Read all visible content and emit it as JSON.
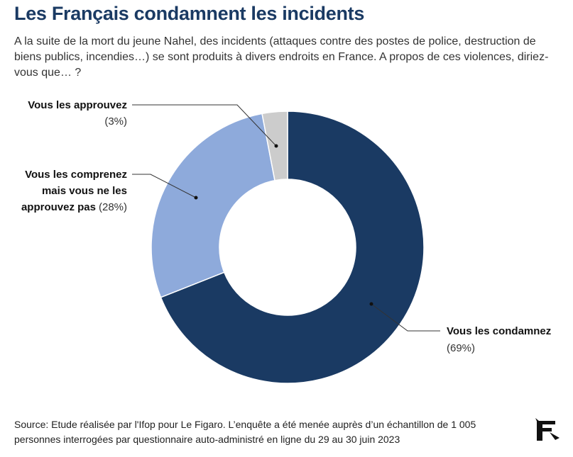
{
  "header": {
    "title": "Les Français condamnent les incidents",
    "subtitle": "A la suite de la mort du jeune Nahel, des incidents (attaques contre des postes de police, destruction de biens publics, incendies…) se sont produits à divers endroits en France. A propos de ces violences, diriez-vous que… ?"
  },
  "chart_data": {
    "type": "pie",
    "donut": true,
    "categories": [
      "Vous les condamnez",
      "Vous les comprenez mais vous ne les approuvez pas",
      "Vous les approuvez"
    ],
    "values": [
      69,
      28,
      3
    ],
    "value_labels": [
      "(69%)",
      "(28%)",
      "(3%)"
    ],
    "colors": [
      "#1a3a63",
      "#8eaadb",
      "#cccccc"
    ],
    "legend": "none (direct labels with leader lines)",
    "labels": {
      "approve_line1": "Vous les approuvez",
      "approve_pct": "(3%)",
      "understand_line1": "Vous les comprenez",
      "understand_line2": "mais vous ne les",
      "understand_line3": "approuvez pas",
      "understand_pct": "(28%)",
      "condemn_line1": "Vous les condamnez",
      "condemn_pct": "(69%)"
    }
  },
  "footer": {
    "source": "Source: Etude réalisée par l'Ifop pour Le Figaro. L’enquête a été menée auprès d’un échantillon de 1 005 personnes interrogées par questionnaire auto-administré en ligne du 29 au 30 juin 2023",
    "logo_icon": "le-figaro-logo-icon"
  }
}
